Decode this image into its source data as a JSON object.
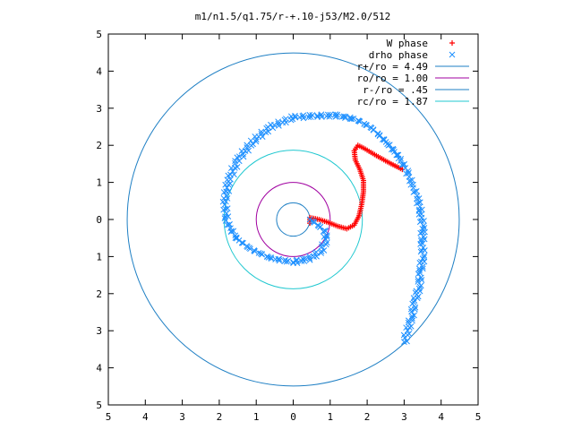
{
  "chart_data": {
    "type": "scatter",
    "title": "m1/n1.5/q1.75/r-+.10-j53/M2.0/512",
    "xlabel": "",
    "ylabel": "",
    "xlim": [
      -5,
      5
    ],
    "ylim": [
      -5,
      5
    ],
    "grid": false,
    "legend_placement": "top-right",
    "x_tick_labels": [
      "5",
      "4",
      "3",
      "2",
      "1",
      "0",
      "1",
      "2",
      "3",
      "4",
      "5"
    ],
    "y_tick_labels": [
      "5",
      "4",
      "3",
      "2",
      "1",
      "0",
      "1",
      "2",
      "3",
      "4",
      "5"
    ],
    "series": [
      {
        "name": "W phase",
        "kind": "points",
        "marker": "plus",
        "color": "#ff0000",
        "points": [
          [
            0.45,
            -0.1
          ],
          [
            0.45,
            0.05
          ],
          [
            0.7,
            0.0
          ],
          [
            0.95,
            -0.08
          ],
          [
            1.2,
            -0.18
          ],
          [
            1.45,
            -0.25
          ],
          [
            1.65,
            -0.15
          ],
          [
            1.78,
            0.1
          ],
          [
            1.85,
            0.4
          ],
          [
            1.9,
            0.75
          ],
          [
            1.9,
            1.05
          ],
          [
            1.8,
            1.35
          ],
          [
            1.68,
            1.6
          ],
          [
            1.65,
            1.85
          ],
          [
            1.75,
            2.0
          ],
          [
            1.95,
            1.9
          ],
          [
            2.2,
            1.75
          ],
          [
            2.5,
            1.58
          ],
          [
            2.75,
            1.45
          ],
          [
            2.95,
            1.35
          ]
        ]
      },
      {
        "name": "drho phase",
        "kind": "points",
        "marker": "cross",
        "color": "#1e90ff",
        "points": [
          [
            3.0,
            -3.3
          ],
          [
            3.1,
            -3.0
          ],
          [
            3.2,
            -2.6
          ],
          [
            3.3,
            -2.2
          ],
          [
            3.4,
            -1.8
          ],
          [
            3.45,
            -1.4
          ],
          [
            3.5,
            -1.0
          ],
          [
            3.5,
            -0.6
          ],
          [
            3.5,
            -0.2
          ],
          [
            3.45,
            0.2
          ],
          [
            3.35,
            0.6
          ],
          [
            3.2,
            1.0
          ],
          [
            3.05,
            1.35
          ],
          [
            2.85,
            1.7
          ],
          [
            2.55,
            2.05
          ],
          [
            2.15,
            2.45
          ],
          [
            1.7,
            2.7
          ],
          [
            1.2,
            2.8
          ],
          [
            0.6,
            2.8
          ],
          [
            0.0,
            2.75
          ],
          [
            -0.6,
            2.5
          ],
          [
            -1.1,
            2.1
          ],
          [
            -1.5,
            1.6
          ],
          [
            -1.75,
            1.05
          ],
          [
            -1.85,
            0.5
          ],
          [
            -1.8,
            -0.05
          ],
          [
            -1.55,
            -0.5
          ],
          [
            -1.15,
            -0.8
          ],
          [
            -0.6,
            -1.05
          ],
          [
            0.0,
            -1.15
          ],
          [
            0.45,
            -1.05
          ],
          [
            0.75,
            -0.85
          ],
          [
            0.9,
            -0.55
          ],
          [
            0.85,
            -0.3
          ],
          [
            0.6,
            -0.1
          ],
          [
            0.45,
            0.0
          ]
        ]
      },
      {
        "name": "r+/ro = 4.49",
        "kind": "circle",
        "radius": 4.49,
        "color": "#1e7fc4"
      },
      {
        "name": "ro/ro = 1.00",
        "kind": "circle",
        "radius": 1.0,
        "color": "#a000a0"
      },
      {
        "name": "r-/ro = .45",
        "kind": "circle",
        "radius": 0.45,
        "color": "#1e7fc4"
      },
      {
        "name": "rc/ro = 1.87",
        "kind": "circle",
        "radius": 1.87,
        "color": "#20c8d0"
      }
    ]
  }
}
